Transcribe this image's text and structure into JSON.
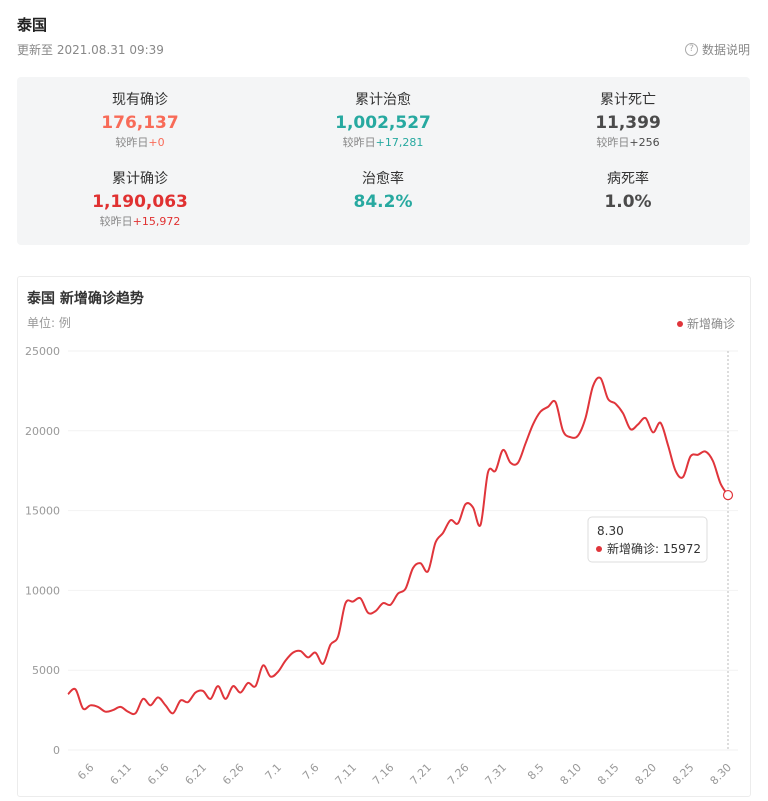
{
  "header": {
    "title": "泰国",
    "subtitle": "更新至 2021.08.31 09:39",
    "help": "数据说明"
  },
  "stats": [
    {
      "label": "现有确诊",
      "value": "176,137",
      "delta_label": "较昨日",
      "delta": "+0",
      "color": "#f86b58"
    },
    {
      "label": "累计治愈",
      "value": "1,002,527",
      "delta_label": "较昨日",
      "delta": "+17,281",
      "color": "#27a9a0"
    },
    {
      "label": "累计死亡",
      "value": "11,399",
      "delta_label": "较昨日",
      "delta": "+256",
      "color": "#4b4b4b"
    },
    {
      "label": "累计确诊",
      "value": "1,190,063",
      "delta_label": "较昨日",
      "delta": "+15,972",
      "color": "#e03131"
    },
    {
      "label": "治愈率",
      "value": "84.2%",
      "color": "#27a9a0"
    },
    {
      "label": "病死率",
      "value": "1.0%",
      "color": "#4b4b4b"
    }
  ],
  "chart_data": {
    "type": "line",
    "title": "泰国 新增确诊趋势",
    "unit": "单位: 例",
    "categories": [
      null,
      null,
      null,
      "6.6",
      null,
      null,
      null,
      null,
      "6.11",
      null,
      null,
      null,
      null,
      "6.16",
      null,
      null,
      null,
      null,
      "6.21",
      null,
      null,
      null,
      null,
      "6.26",
      null,
      null,
      null,
      null,
      "7.1",
      null,
      null,
      null,
      null,
      "7.6",
      null,
      null,
      null,
      null,
      "7.11",
      null,
      null,
      null,
      null,
      "7.16",
      null,
      null,
      null,
      null,
      "7.21",
      null,
      null,
      null,
      null,
      "7.26",
      null,
      null,
      null,
      null,
      "7.31",
      null,
      null,
      null,
      null,
      "8.5",
      null,
      null,
      null,
      null,
      "8.10",
      null,
      null,
      null,
      null,
      "8.15",
      null,
      null,
      null,
      null,
      "8.20",
      null,
      null,
      null,
      null,
      "8.25",
      null,
      null,
      null,
      null,
      "8.30"
    ],
    "series": [
      {
        "name": "新增确诊",
        "color": "#e0353b",
        "values": [
          3500,
          3800,
          2600,
          2800,
          2700,
          2400,
          2500,
          2700,
          2400,
          2300,
          3200,
          2800,
          3300,
          2800,
          2300,
          3100,
          3000,
          3600,
          3700,
          3200,
          4000,
          3200,
          4000,
          3600,
          4200,
          4000,
          5300,
          4600,
          4900,
          5600,
          6100,
          6200,
          5800,
          6100,
          5400,
          6600,
          7100,
          9200,
          9300,
          9500,
          8600,
          8700,
          9200,
          9100,
          9800,
          10100,
          11400,
          11700,
          11200,
          13000,
          13600,
          14400,
          14200,
          15400,
          15200,
          14100,
          17400,
          17500,
          18800,
          18000,
          18000,
          19200,
          20400,
          21200,
          21500,
          21800,
          20000,
          19600,
          19700,
          20800,
          22800,
          23300,
          22000,
          21700,
          21100,
          20100,
          20400,
          20800,
          19900,
          20500,
          19100,
          17500,
          17100,
          18400,
          18500,
          18700,
          18100,
          16700,
          15972
        ]
      }
    ],
    "ylim": [
      0,
      25000
    ],
    "yticks": [
      0,
      5000,
      10000,
      15000,
      20000,
      25000
    ],
    "grid": true,
    "legend": "top-right",
    "tooltip_index": 88
  }
}
